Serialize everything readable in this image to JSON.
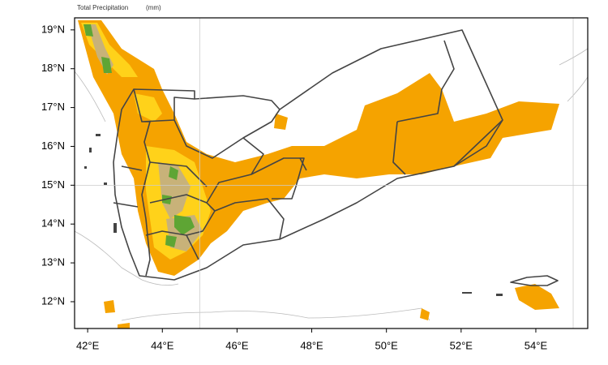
{
  "map": {
    "title": "Total Precipitation",
    "units": "(mm)",
    "xlim": [
      41.65,
      55.39
    ],
    "ylim": [
      11.31,
      19.31
    ],
    "xticks": [
      {
        "value": 42,
        "label": "42°E"
      },
      {
        "value": 44,
        "label": "44°E"
      },
      {
        "value": 46,
        "label": "46°E"
      },
      {
        "value": 48,
        "label": "48°E"
      },
      {
        "value": 50,
        "label": "50°E"
      },
      {
        "value": 52,
        "label": "52°E"
      },
      {
        "value": 54,
        "label": "54°E"
      }
    ],
    "yticks": [
      {
        "value": 12,
        "label": "12°N"
      },
      {
        "value": 13,
        "label": "13°N"
      },
      {
        "value": 14,
        "label": "14°N"
      },
      {
        "value": 15,
        "label": "15°N"
      },
      {
        "value": 16,
        "label": "16°N"
      },
      {
        "value": 17,
        "label": "17°N"
      },
      {
        "value": 18,
        "label": "18°N"
      },
      {
        "value": 19,
        "label": "19°N"
      }
    ],
    "grid_lon": [
      45,
      55
    ],
    "grid_lat": [
      15
    ]
  }
}
